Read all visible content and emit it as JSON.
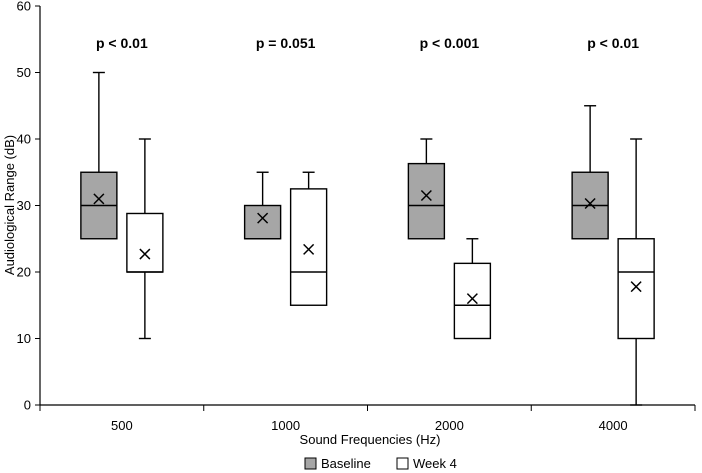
{
  "chart_data": {
    "type": "boxplot",
    "ylabel": "Audiological Range (dB)",
    "xlabel": "Sound Frequencies (Hz)",
    "ylim": [
      0,
      60
    ],
    "yticks": [
      0,
      10,
      20,
      30,
      40,
      50,
      60
    ],
    "categories": [
      "500",
      "1000",
      "2000",
      "4000"
    ],
    "series": [
      {
        "name": "Baseline",
        "color": "#a6a6a6",
        "boxes": [
          {
            "min": 25,
            "q1": 25,
            "median": 30,
            "q3": 35,
            "max": 50,
            "mean": 31
          },
          {
            "min": 25,
            "q1": 25,
            "median": 25,
            "q3": 30,
            "max": 35,
            "mean": 28.1
          },
          {
            "min": 25,
            "q1": 25,
            "median": 30,
            "q3": 36.3,
            "max": 40,
            "mean": 31.5
          },
          {
            "min": 25,
            "q1": 25,
            "median": 30,
            "q3": 35,
            "max": 45,
            "mean": 30.3
          }
        ]
      },
      {
        "name": "Week 4",
        "color": "#ffffff",
        "boxes": [
          {
            "min": 10,
            "q1": 20,
            "median": 20,
            "q3": 28.8,
            "max": 40,
            "mean": 22.7
          },
          {
            "min": 15,
            "q1": 15,
            "median": 20,
            "q3": 32.5,
            "max": 35,
            "mean": 23.4
          },
          {
            "min": 10,
            "q1": 10,
            "median": 15,
            "q3": 21.3,
            "max": 25,
            "mean": 16
          },
          {
            "min": 0,
            "q1": 10,
            "median": 20,
            "q3": 25,
            "max": 40,
            "mean": 17.8
          }
        ]
      }
    ],
    "annotations": [
      "p < 0.01",
      "p = 0.051",
      "p < 0.001",
      "p < 0.01"
    ],
    "legend": [
      "Baseline",
      "Week 4"
    ],
    "mean_marker": "x",
    "grid": false
  }
}
